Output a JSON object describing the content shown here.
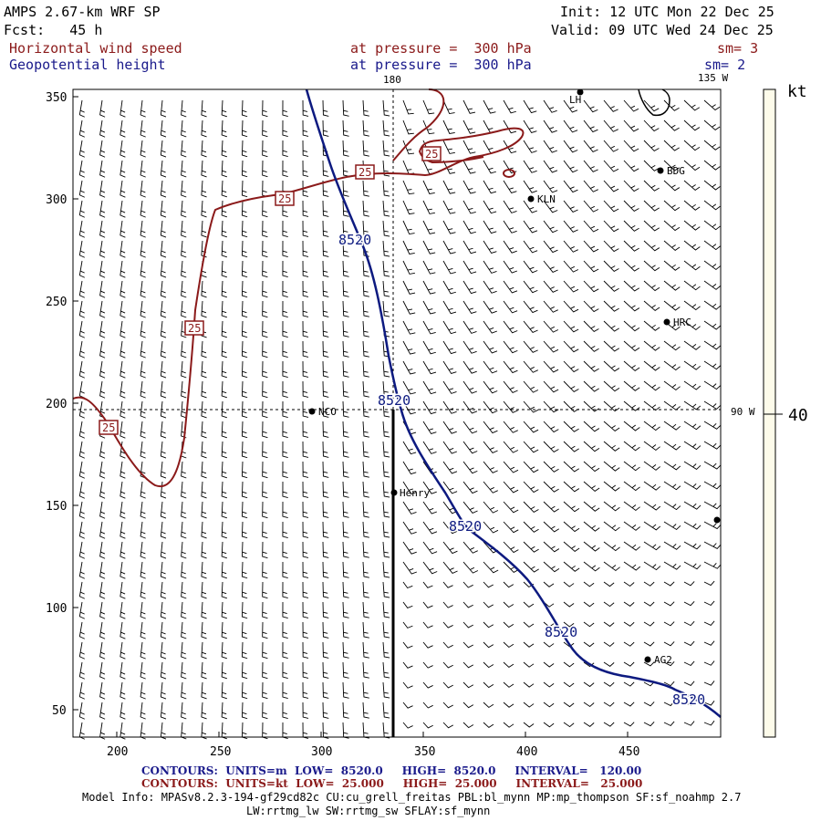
{
  "header": {
    "model": "AMPS 2.67-km WRF SP",
    "init": "Init: 12 UTC Mon 22 Dec 25",
    "fcst": "Fcst:   45 h",
    "valid": "Valid: 09 UTC Wed 24 Dec 25",
    "field1_name": "Horizontal wind speed",
    "field1_level": "at pressure =  300 hPa",
    "field1_sm": "sm= 3",
    "field2_name": "Geopotential height",
    "field2_level": "at pressure =  300 hPa",
    "field2_sm": "sm= 2"
  },
  "map": {
    "x_ticks": [
      "200",
      "250",
      "300",
      "350",
      "400",
      "450"
    ],
    "y_ticks": [
      "350",
      "300",
      "250",
      "200",
      "150",
      "100",
      "50"
    ],
    "meridian_labels": {
      "top": "180",
      "top_right": "135 W",
      "right": "90 W"
    },
    "stations": [
      {
        "name": "LH"
      },
      {
        "name": "BDG"
      },
      {
        "name": "KLN"
      },
      {
        "name": "HRC"
      },
      {
        "name": "NCO"
      },
      {
        "name": "Henry"
      },
      {
        "name": "AG2"
      },
      {
        "name": ""
      }
    ],
    "height_contour_label": "8520",
    "wind_contour_label": "25",
    "colors": {
      "height": "#0d1a80",
      "wind": "#8b1a1a",
      "barb": "#000000"
    }
  },
  "colorbar": {
    "unit": "kt",
    "value": "40",
    "fill": "#fdfbea"
  },
  "footer": {
    "contours_height": "CONTOURS:  UNITS=m  LOW=  8520.0     HIGH=  8520.0     INTERVAL=   120.00",
    "contours_wind": "CONTOURS:  UNITS=kt  LOW=  25.000     HIGH=  25.000     INTERVAL=   25.000",
    "model_info_1": "Model Info: MPASv8.2.3-194-gf29cd82c CU:cu_grell_freitas PBL:bl_mynn MP:mp_thompson SF:sf_noahmp 2.7",
    "model_info_2": "LW:rrtmg_lw SW:rrtmg_sw SFLAY:sf_mynn"
  }
}
